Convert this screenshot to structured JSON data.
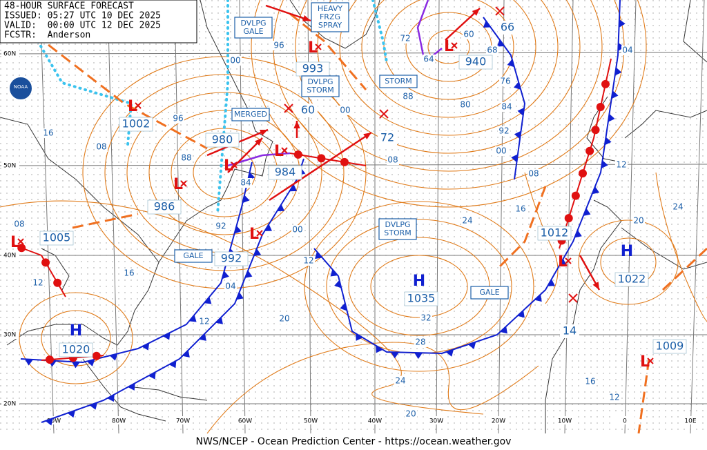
{
  "header": {
    "title": "48-HOUR SURFACE FORECAST",
    "issued": "ISSUED: 05:27 UTC 10 DEC 2025",
    "valid": "VALID:  00:00 UTC 12 DEC 2025",
    "forecaster": "FCSTR:  Anderson"
  },
  "logo": "NOAA",
  "latitude_labels": [
    "60N",
    "50N",
    "40N",
    "30N",
    "20N"
  ],
  "longitude_labels": [
    "90W",
    "80W",
    "70W",
    "60W",
    "50W",
    "40W",
    "30W",
    "20W",
    "10W",
    "0",
    "10E"
  ],
  "systems": [
    {
      "symbol": "L",
      "pressure": "1002"
    },
    {
      "symbol": "L",
      "pressure": "980"
    },
    {
      "symbol": "L",
      "pressure": "986"
    },
    {
      "symbol": "L",
      "pressure": "984"
    },
    {
      "symbol": "L",
      "pressure": "992"
    },
    {
      "symbol": "L",
      "pressure": "1005"
    },
    {
      "symbol": "L",
      "pressure": "993"
    },
    {
      "symbol": "L",
      "pressure": "940"
    },
    {
      "symbol": "L",
      "pressure": "1012"
    },
    {
      "symbol": "L",
      "pressure": "1009"
    },
    {
      "symbol": "H",
      "pressure": "1020"
    },
    {
      "symbol": "H",
      "pressure": "1035"
    },
    {
      "symbol": "H",
      "pressure": "1022"
    }
  ],
  "center_labels": [
    "60",
    "72",
    "66",
    "14"
  ],
  "warnings": [
    {
      "lines": [
        "HEAVY",
        "FRZG",
        "SPRAY"
      ]
    },
    {
      "lines": [
        "DVLPG",
        "GALE"
      ]
    },
    {
      "lines": [
        "DVLPG",
        "STORM"
      ]
    },
    {
      "lines": [
        "STORM"
      ]
    },
    {
      "lines": [
        "MERGED"
      ]
    },
    {
      "lines": [
        "DVLPG",
        "STORM"
      ]
    },
    {
      "lines": [
        "GALE"
      ]
    },
    {
      "lines": [
        "GALE"
      ]
    }
  ],
  "isobar_labels": [
    "96",
    "00",
    "96",
    "88",
    "84",
    "92",
    "00",
    "12",
    "04",
    "16",
    "12",
    "08",
    "16",
    "08",
    "12",
    "20",
    "24",
    "28",
    "32",
    "24",
    "16",
    "08",
    "00",
    "92",
    "84",
    "80",
    "76",
    "68",
    "60",
    "64",
    "72",
    "88",
    "00",
    "08",
    "12",
    "20",
    "24",
    "04",
    "16",
    "12",
    "20"
  ],
  "footer": "NWS/NCEP - Ocean Prediction Center - https://ocean.weather.gov"
}
